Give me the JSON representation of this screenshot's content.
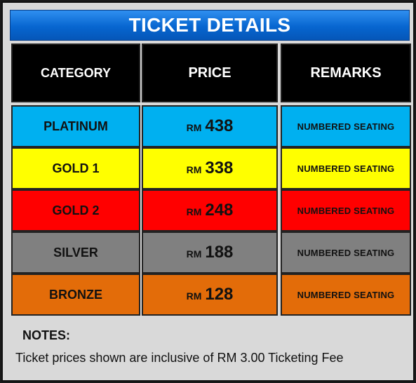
{
  "title": "TICKET DETAILS",
  "headers": [
    "CATEGORY",
    "PRICE",
    "REMARKS"
  ],
  "rows": [
    {
      "category": "PLATINUM",
      "currency": "RM",
      "price": "438",
      "remarks": "NUMBERED SEATING",
      "color": "#00b0f0"
    },
    {
      "category": "GOLD 1",
      "currency": "RM",
      "price": "338",
      "remarks": "NUMBERED SEATING",
      "color": "#ffff00"
    },
    {
      "category": "GOLD 2",
      "currency": "RM",
      "price": "248",
      "remarks": "NUMBERED SEATING",
      "color": "#ff0000"
    },
    {
      "category": "SILVER",
      "currency": "RM",
      "price": "188",
      "remarks": "NUMBERED SEATING",
      "color": "#808080"
    },
    {
      "category": "BRONZE",
      "currency": "RM",
      "price": "128",
      "remarks": "NUMBERED SEATING",
      "color": "#e36c09"
    }
  ],
  "notes": {
    "title": "NOTES:",
    "text": "Ticket prices shown are inclusive of RM 3.00 Ticketing Fee"
  },
  "colors": {
    "header_background": "#000000",
    "title_bar": "#0766d0",
    "panel_background": "#d9d9d9"
  }
}
